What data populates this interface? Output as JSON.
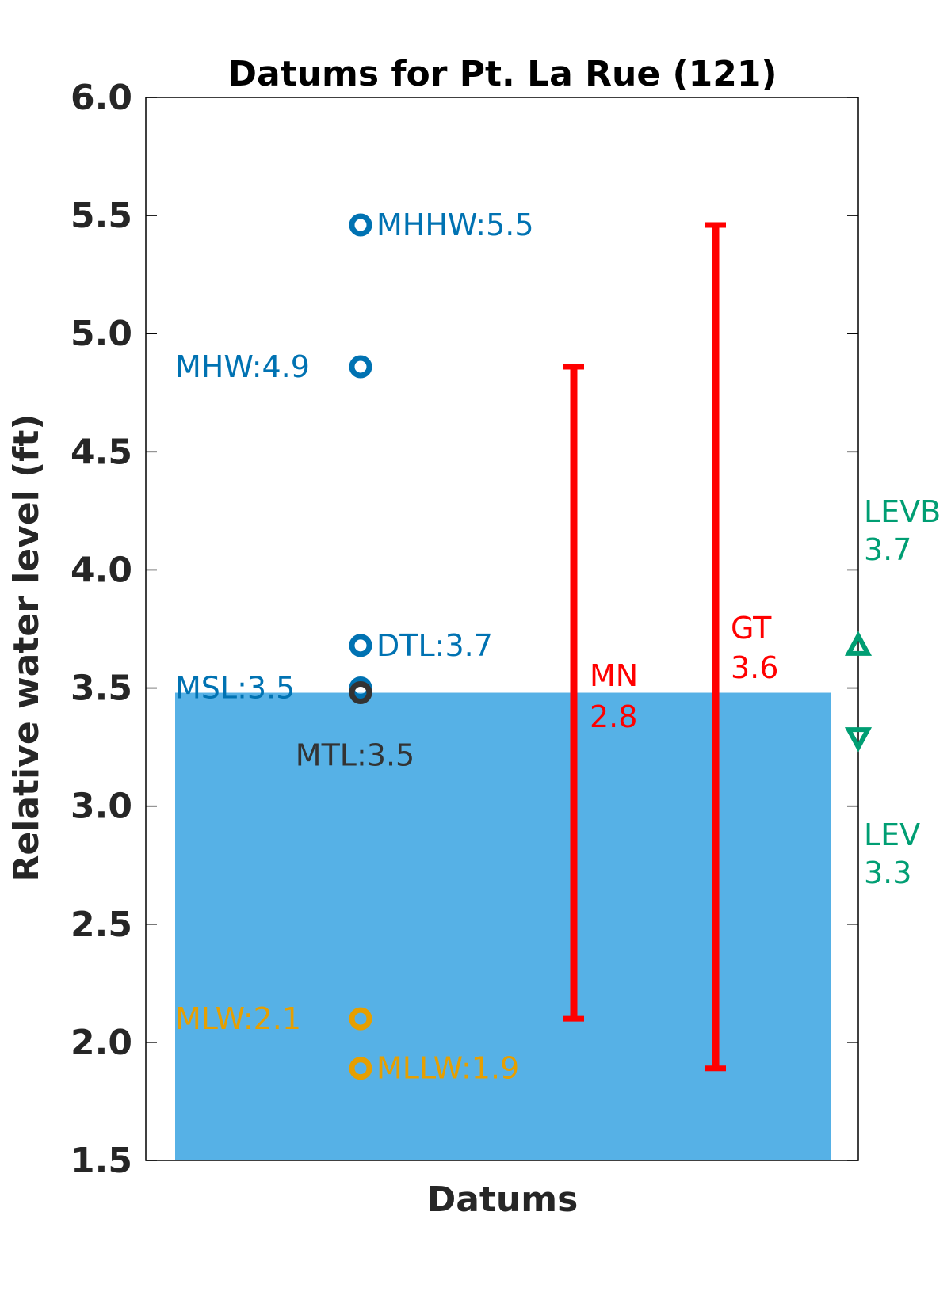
{
  "chart_data": {
    "type": "scatter",
    "title": "Datums for Pt. La Rue (121)",
    "xlabel": "Datums",
    "ylabel": "Relative water level (ft)",
    "ylim": [
      1.5,
      6.0
    ],
    "yticks": [
      "1.5",
      "2.0",
      "2.5",
      "3.0",
      "3.5",
      "4.0",
      "4.5",
      "5.0",
      "5.5",
      "6.0"
    ],
    "ytick_values": [
      1.5,
      2.0,
      2.5,
      3.0,
      3.5,
      4.0,
      4.5,
      5.0,
      5.5,
      6.0
    ],
    "grid": false,
    "water_fill": {
      "value": 3.48,
      "color": "#56B1E6"
    },
    "datums": [
      {
        "name": "MHHW",
        "value": 5.46,
        "label": "MHHW:5.5",
        "color": "#0072B2",
        "label_side": "right"
      },
      {
        "name": "MHW",
        "value": 4.86,
        "label": "MHW:4.9",
        "color": "#0072B2",
        "label_side": "left"
      },
      {
        "name": "DTL",
        "value": 3.68,
        "label": "DTL:3.7",
        "color": "#0072B2",
        "label_side": "right"
      },
      {
        "name": "MSL",
        "value": 3.5,
        "label": "MSL:3.5",
        "color": "#0072B2",
        "label_side": "left"
      },
      {
        "name": "MTL",
        "value": 3.48,
        "label": "MTL:3.5",
        "color": "#333333",
        "label_side": "below"
      },
      {
        "name": "MLW",
        "value": 2.1,
        "label": "MLW:2.1",
        "color": "#E69F00",
        "label_side": "left"
      },
      {
        "name": "MLLW",
        "value": 1.89,
        "label": "MLLW:1.9",
        "color": "#E69F00",
        "label_side": "right"
      }
    ],
    "ranges": [
      {
        "name": "MN",
        "value_label": "2.8",
        "low": 2.1,
        "high": 4.86,
        "color": "#FF0000"
      },
      {
        "name": "GT",
        "value_label": "3.6",
        "low": 1.89,
        "high": 5.46,
        "color": "#FF0000"
      }
    ],
    "levees": [
      {
        "name": "LEVB",
        "value_label": "3.7",
        "value": 3.68,
        "marker": "triangle-up",
        "color": "#009E73"
      },
      {
        "name": "LEV",
        "value_label": "3.3",
        "value": 3.29,
        "marker": "triangle-down",
        "color": "#009E73"
      }
    ]
  }
}
